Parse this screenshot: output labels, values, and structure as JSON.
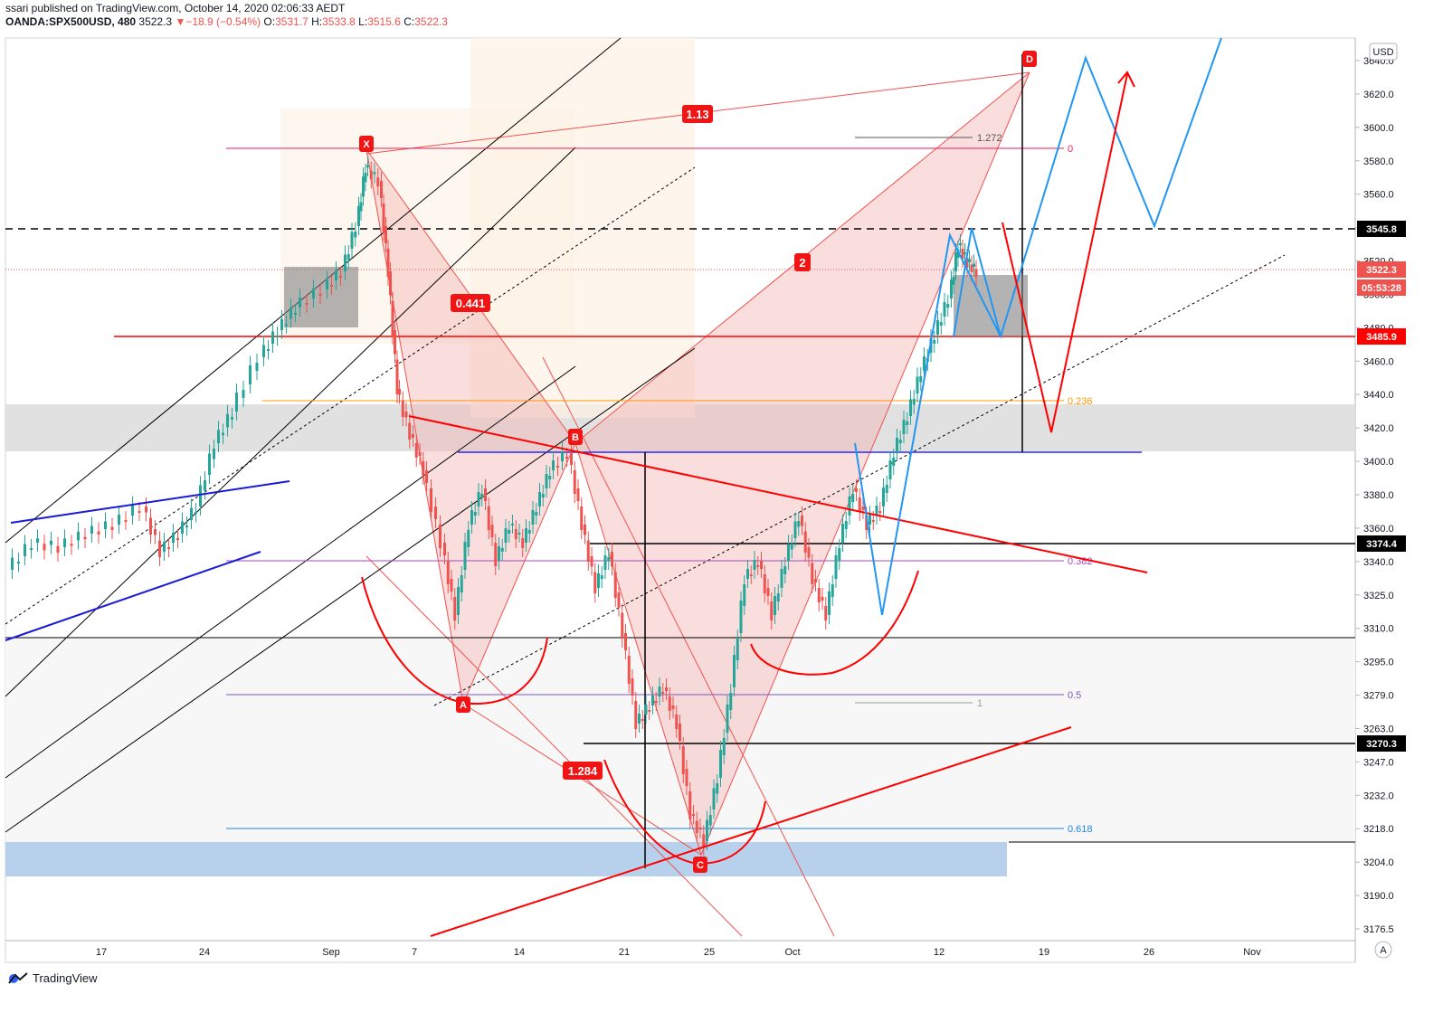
{
  "header": {
    "published": "ssari published on TradingView.com, October 14, 2020 02:06:33 AEDT",
    "symbol": "OANDA:SPX500USD, 480",
    "last": "3522.3",
    "change": "▼−18.9 (−0.54%)",
    "o_label": "O:",
    "o": "3531.7",
    "h_label": "H:",
    "h": "3533.8",
    "l_label": "L:",
    "l": "3515.6",
    "c_label": "C:",
    "c": "3522.3"
  },
  "footer": {
    "brand": "TradingView",
    "logo_icon": "tradingview-logo-icon"
  },
  "axis": {
    "currency": "USD",
    "auto_label": "A",
    "y_ticks": [
      "3640.0",
      "3620.0",
      "3600.0",
      "3580.0",
      "3560.0",
      "3540.0",
      "3520.0",
      "3500.0",
      "3480.0",
      "3460.0",
      "3440.0",
      "3420.0",
      "3400.0",
      "3380.0",
      "3360.0",
      "3340.0",
      "3325.0",
      "3310.0",
      "3295.0",
      "3279.0",
      "3263.0",
      "3247.0",
      "3232.0",
      "3218.0",
      "3204.0",
      "3190.0",
      "3176.5"
    ],
    "x_ticks": [
      "17",
      "24",
      "Sep",
      "7",
      "14",
      "21",
      "25",
      "Oct",
      "12",
      "19",
      "26",
      "Nov"
    ],
    "price_tags": [
      {
        "label": "3545.8",
        "color": "#000000"
      },
      {
        "label": "3522.3",
        "color": "#ef5350"
      },
      {
        "label": "05:53:28",
        "color": "#ef5350"
      },
      {
        "label": "3485.9",
        "color": "#ff0000"
      },
      {
        "label": "3374.4",
        "color": "#000000"
      },
      {
        "label": "3270.3",
        "color": "#000000"
      }
    ]
  },
  "pattern": {
    "points": [
      "X",
      "A",
      "B",
      "C",
      "D"
    ],
    "ratios": [
      "0.441",
      "1.284",
      "1.13",
      "2"
    ],
    "fib_levels": [
      "0",
      "0.236",
      "0.382",
      "0.5",
      "0.618"
    ],
    "ext_levels": [
      "1.272",
      "1"
    ]
  },
  "chart_data": {
    "type": "candlestick",
    "symbol": "OANDA:SPX500USD",
    "interval": "480",
    "ylim": [
      3170,
      3650
    ],
    "y_scale": "log",
    "candles": []
  }
}
